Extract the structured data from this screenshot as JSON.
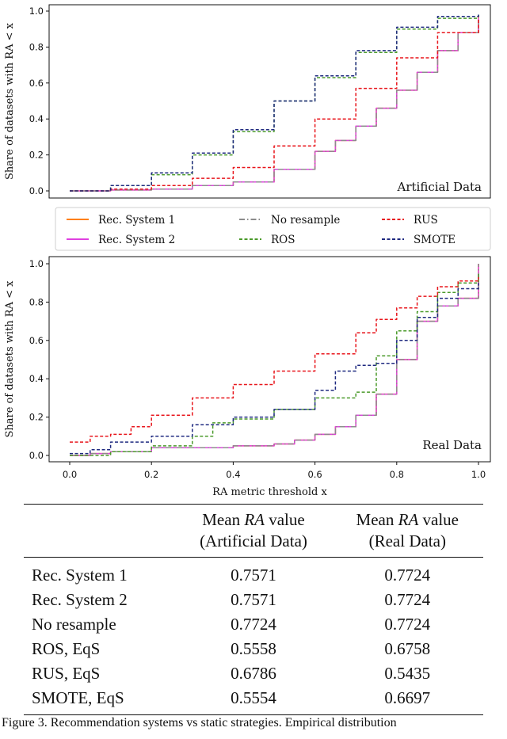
{
  "chart_data": [
    {
      "type": "line",
      "panel_label": "Artificial Data",
      "ylabel": "Share of datasets with RA < x",
      "xlabel": "",
      "xlim": [
        0,
        1
      ],
      "ylim": [
        0,
        1
      ],
      "yticks": [
        "0.0",
        "0.2",
        "0.4",
        "0.6",
        "0.8",
        "1.0"
      ],
      "series": [
        {
          "name": "Rec. System 1",
          "color": "#ff7f0e",
          "dash": "solid",
          "x": [
            0.0,
            0.1,
            0.2,
            0.3,
            0.4,
            0.5,
            0.6,
            0.65,
            0.7,
            0.75,
            0.8,
            0.85,
            0.9,
            0.95,
            1.0
          ],
          "y": [
            0.0,
            0.005,
            0.01,
            0.03,
            0.05,
            0.12,
            0.22,
            0.28,
            0.36,
            0.46,
            0.56,
            0.66,
            0.78,
            0.88,
            0.96
          ]
        },
        {
          "name": "Rec. System 2",
          "color": "#e040e0",
          "dash": "solid",
          "x": [
            0.0,
            0.1,
            0.2,
            0.3,
            0.4,
            0.5,
            0.6,
            0.65,
            0.7,
            0.75,
            0.8,
            0.85,
            0.9,
            0.95,
            1.0
          ],
          "y": [
            0.0,
            0.005,
            0.01,
            0.03,
            0.05,
            0.12,
            0.22,
            0.28,
            0.36,
            0.46,
            0.56,
            0.66,
            0.78,
            0.88,
            0.96
          ]
        },
        {
          "name": "No resample",
          "color": "#8c8c8c",
          "dash": "dashdot",
          "x": [
            0.0,
            0.1,
            0.2,
            0.3,
            0.4,
            0.5,
            0.6,
            0.65,
            0.7,
            0.75,
            0.8,
            0.85,
            0.9,
            0.95,
            1.0
          ],
          "y": [
            0.0,
            0.005,
            0.01,
            0.03,
            0.05,
            0.12,
            0.22,
            0.28,
            0.36,
            0.46,
            0.56,
            0.66,
            0.78,
            0.88,
            0.97
          ]
        },
        {
          "name": "ROS",
          "color": "#4a9a2a",
          "dash": "dashed",
          "x": [
            0.0,
            0.1,
            0.2,
            0.3,
            0.4,
            0.5,
            0.6,
            0.7,
            0.8,
            0.9,
            1.0
          ],
          "y": [
            0.0,
            0.03,
            0.09,
            0.2,
            0.33,
            0.5,
            0.63,
            0.77,
            0.9,
            0.96,
            0.99
          ]
        },
        {
          "name": "RUS",
          "color": "#e8161c",
          "dash": "dashed",
          "x": [
            0.0,
            0.1,
            0.2,
            0.3,
            0.4,
            0.5,
            0.6,
            0.7,
            0.8,
            0.9,
            1.0
          ],
          "y": [
            0.0,
            0.01,
            0.03,
            0.07,
            0.13,
            0.25,
            0.4,
            0.57,
            0.74,
            0.88,
            0.97
          ]
        },
        {
          "name": "SMOTE",
          "color": "#1f2a80",
          "dash": "dashed",
          "x": [
            0.0,
            0.1,
            0.2,
            0.3,
            0.4,
            0.5,
            0.6,
            0.7,
            0.8,
            0.9,
            1.0
          ],
          "y": [
            0.0,
            0.03,
            0.1,
            0.21,
            0.34,
            0.5,
            0.64,
            0.78,
            0.91,
            0.97,
            0.99
          ]
        }
      ]
    },
    {
      "type": "line",
      "panel_label": "Real Data",
      "ylabel": "Share of datasets with RA < x",
      "xlabel": "RA metric threshold x",
      "xlim": [
        0,
        1
      ],
      "ylim": [
        0,
        1
      ],
      "xticks": [
        "0.0",
        "0.2",
        "0.4",
        "0.6",
        "0.8",
        "1.0"
      ],
      "yticks": [
        "0.0",
        "0.2",
        "0.4",
        "0.6",
        "0.8",
        "1.0"
      ],
      "series": [
        {
          "name": "Rec. System 1",
          "color": "#ff7f0e",
          "dash": "solid",
          "x": [
            0.0,
            0.05,
            0.1,
            0.2,
            0.3,
            0.36,
            0.4,
            0.5,
            0.55,
            0.6,
            0.65,
            0.7,
            0.75,
            0.8,
            0.85,
            0.9,
            0.95,
            1.0,
            1.0
          ],
          "y": [
            0.0,
            0.01,
            0.02,
            0.04,
            0.04,
            0.04,
            0.05,
            0.06,
            0.08,
            0.11,
            0.15,
            0.21,
            0.32,
            0.5,
            0.7,
            0.78,
            0.82,
            0.87,
            1.0
          ]
        },
        {
          "name": "Rec. System 2",
          "color": "#e040e0",
          "dash": "solid",
          "x": [
            0.0,
            0.05,
            0.1,
            0.2,
            0.3,
            0.36,
            0.4,
            0.5,
            0.55,
            0.6,
            0.65,
            0.7,
            0.75,
            0.8,
            0.85,
            0.9,
            0.95,
            1.0,
            1.0
          ],
          "y": [
            0.0,
            0.01,
            0.02,
            0.04,
            0.04,
            0.04,
            0.05,
            0.06,
            0.08,
            0.11,
            0.15,
            0.21,
            0.32,
            0.5,
            0.7,
            0.78,
            0.82,
            0.87,
            1.0
          ]
        },
        {
          "name": "No resample",
          "color": "#8c8c8c",
          "dash": "dashdot",
          "x": [
            0.0,
            0.05,
            0.1,
            0.2,
            0.3,
            0.36,
            0.4,
            0.5,
            0.55,
            0.6,
            0.65,
            0.7,
            0.75,
            0.8,
            0.85,
            0.9,
            0.95,
            1.0,
            1.0
          ],
          "y": [
            0.0,
            0.01,
            0.02,
            0.04,
            0.04,
            0.04,
            0.05,
            0.06,
            0.08,
            0.11,
            0.15,
            0.21,
            0.32,
            0.5,
            0.7,
            0.78,
            0.82,
            0.88,
            1.0
          ]
        },
        {
          "name": "ROS",
          "color": "#4a9a2a",
          "dash": "dashed",
          "x": [
            0.0,
            0.1,
            0.2,
            0.3,
            0.35,
            0.4,
            0.5,
            0.6,
            0.65,
            0.7,
            0.75,
            0.8,
            0.85,
            0.9,
            0.95,
            1.0
          ],
          "y": [
            0.0,
            0.02,
            0.05,
            0.1,
            0.17,
            0.19,
            0.24,
            0.3,
            0.3,
            0.33,
            0.52,
            0.65,
            0.75,
            0.85,
            0.9,
            0.95
          ]
        },
        {
          "name": "RUS",
          "color": "#e8161c",
          "dash": "dashed",
          "x": [
            0.0,
            0.05,
            0.1,
            0.15,
            0.2,
            0.3,
            0.4,
            0.5,
            0.6,
            0.7,
            0.75,
            0.8,
            0.85,
            0.9,
            0.95,
            1.0
          ],
          "y": [
            0.07,
            0.1,
            0.11,
            0.15,
            0.21,
            0.3,
            0.37,
            0.44,
            0.53,
            0.64,
            0.71,
            0.77,
            0.83,
            0.88,
            0.91,
            0.93
          ]
        },
        {
          "name": "SMOTE",
          "color": "#1f2a80",
          "dash": "dashed",
          "x": [
            0.0,
            0.05,
            0.1,
            0.2,
            0.3,
            0.4,
            0.5,
            0.6,
            0.65,
            0.7,
            0.75,
            0.8,
            0.85,
            0.9,
            0.95,
            1.0
          ],
          "y": [
            0.01,
            0.03,
            0.07,
            0.1,
            0.16,
            0.2,
            0.24,
            0.34,
            0.44,
            0.47,
            0.48,
            0.6,
            0.72,
            0.82,
            0.87,
            0.9
          ]
        }
      ]
    }
  ],
  "legend": [
    {
      "label": "Rec. System 1",
      "color": "#ff7f0e",
      "dash": "solid"
    },
    {
      "label": "Rec. System 2",
      "color": "#e040e0",
      "dash": "solid"
    },
    {
      "label": "No resample",
      "color": "#8c8c8c",
      "dash": "dashdot"
    },
    {
      "label": "ROS",
      "color": "#4a9a2a",
      "dash": "dashed"
    },
    {
      "label": "RUS",
      "color": "#e8161c",
      "dash": "dashed"
    },
    {
      "label": "SMOTE",
      "color": "#1f2a80",
      "dash": "dashed"
    }
  ],
  "table": {
    "headers": [
      "",
      "Mean RA value (Artificial Data)",
      "Mean RA value (Real Data)"
    ],
    "header_lines": [
      [
        "Mean ",
        "RA",
        " value",
        "(Artificial Data)"
      ],
      [
        "Mean ",
        "RA",
        " value",
        "(Real Data)"
      ]
    ],
    "rows": [
      [
        "Rec. System 1",
        "0.7571",
        "0.7724"
      ],
      [
        "Rec. System 2",
        "0.7571",
        "0.7724"
      ],
      [
        "No resample",
        "0.7724",
        "0.7724"
      ],
      [
        "ROS, EqS",
        "0.5558",
        "0.6758"
      ],
      [
        "RUS, EqS",
        "0.6786",
        "0.5435"
      ],
      [
        "SMOTE, EqS",
        "0.5554",
        "0.6697"
      ]
    ]
  },
  "caption": "Figure 3.  Recommendation systems vs static strategies. Empirical distribution"
}
